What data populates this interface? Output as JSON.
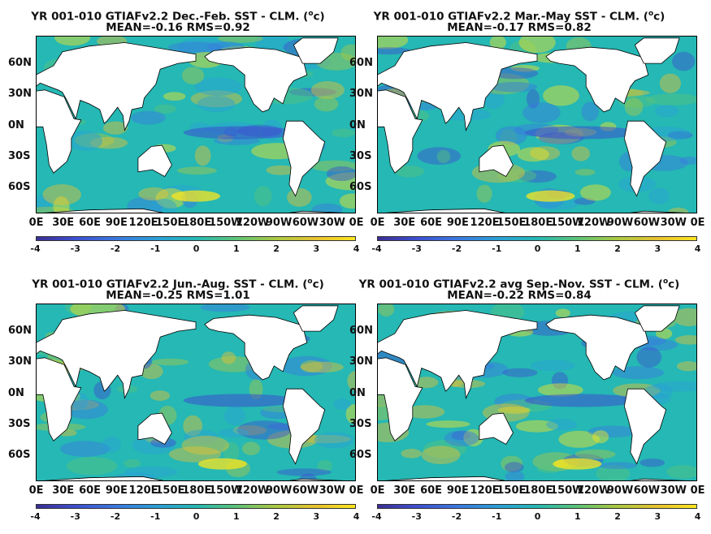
{
  "panels": [
    {
      "title_line1_pre": "YR 001-010 GTIAFv2.2  Dec.-Feb. SST - CLM. (",
      "title_sup": "o",
      "title_line1_post": "c)",
      "title_line2": "MEAN=-0.16   RMS=0.92"
    },
    {
      "title_line1_pre": "YR 001-010 GTIAFv2.2 Mar.-May SST - CLM. (",
      "title_sup": "o",
      "title_line1_post": "c)",
      "title_line2": "MEAN=-0.17   RMS=0.82"
    },
    {
      "title_line1_pre": "YR 001-010 GTIAFv2.2 Jun.-Aug. SST - CLM. (",
      "title_sup": "o",
      "title_line1_post": "c)",
      "title_line2": "MEAN=-0.25   RMS=1.01"
    },
    {
      "title_line1_pre": "YR 001-010 GTIAFv2.2 avg Sep.-Nov. SST - CLM. (",
      "title_sup": "o",
      "title_line1_post": "c)",
      "title_line2": "MEAN=-0.22   RMS=0.84"
    }
  ],
  "lat_ticks": [
    "60N",
    "30N",
    "0N",
    "30S",
    "60S"
  ],
  "lon_ticks": [
    "0E",
    "30E",
    "60E",
    "90E",
    "120E",
    "150E",
    "180E",
    "150W",
    "120W",
    "90W",
    "60W",
    "30W",
    "0E"
  ],
  "colorbar_ticks": [
    "-4",
    "-3",
    "-2",
    "-1",
    "0",
    "1",
    "2",
    "3",
    "4"
  ],
  "colors": {
    "ocean_neutral": "#25b8b4",
    "land": "#ffffff",
    "cold": "#3d4ed0",
    "warm": "#f9e51f"
  }
}
